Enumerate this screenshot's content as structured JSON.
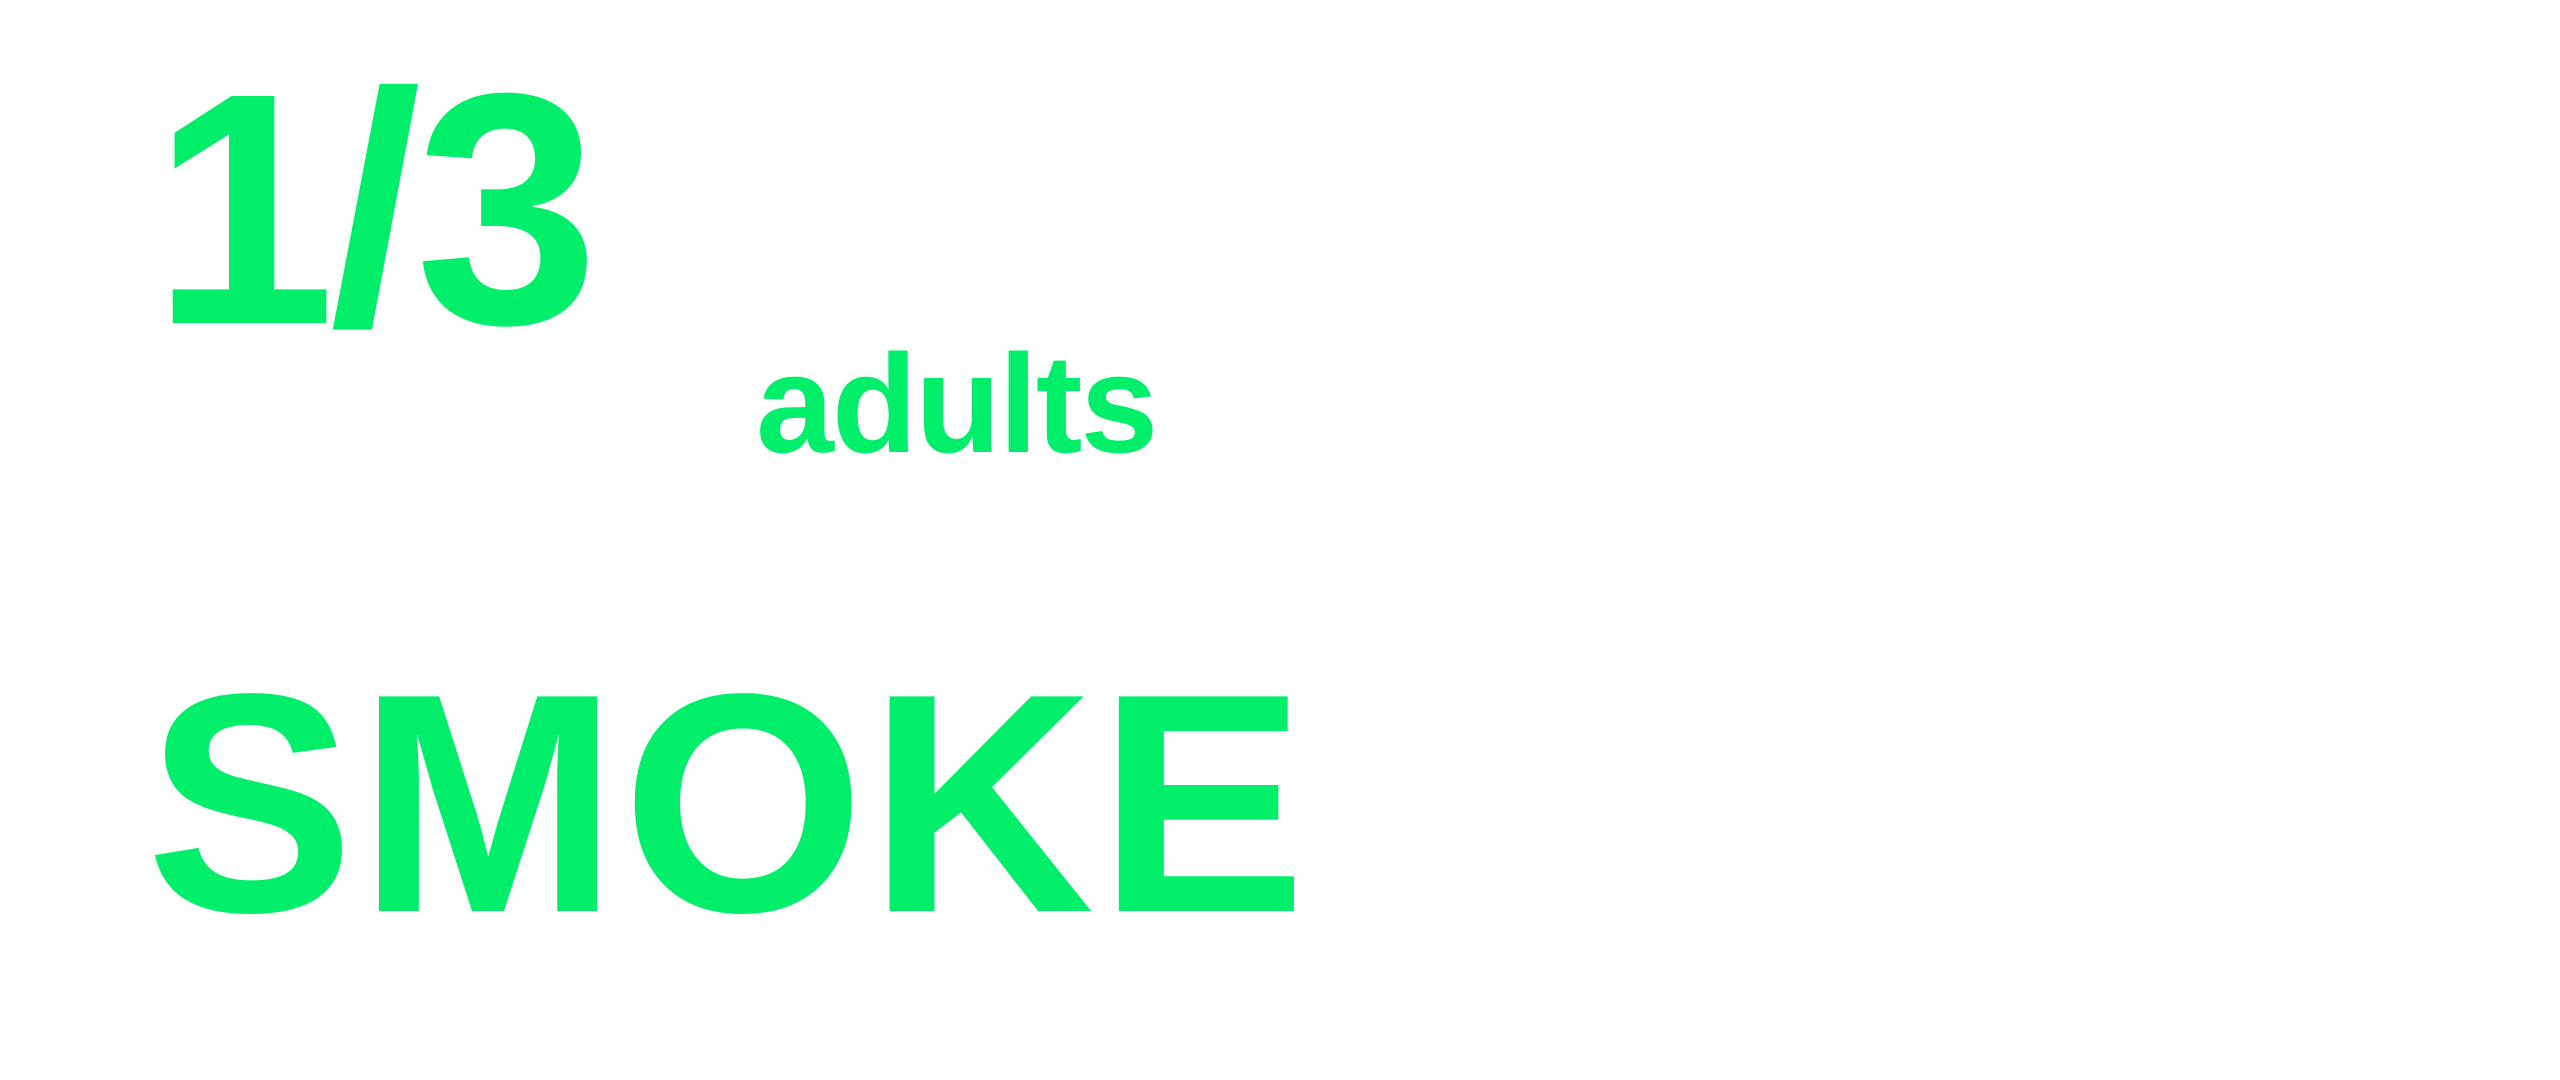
{
  "stat": {
    "fraction": "1/3",
    "unit": "adults"
  },
  "headline": {
    "text": "SMOKE"
  },
  "colors": {
    "accent": "#00ee6a",
    "background": "#ffffff"
  }
}
